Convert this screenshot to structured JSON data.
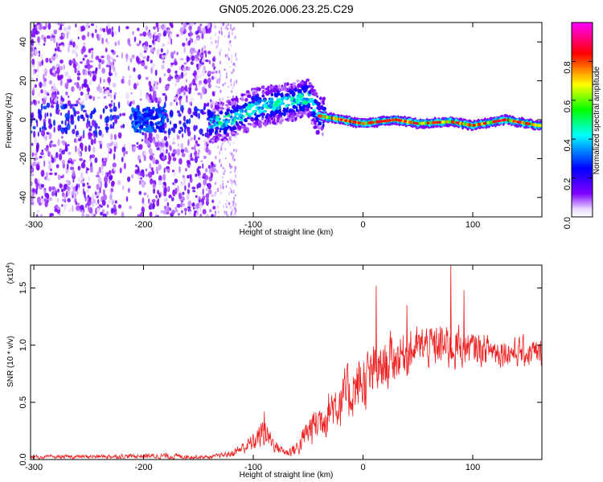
{
  "figure": {
    "title": "GN05.2026.006.23.25.C29"
  },
  "chart_data": [
    {
      "type": "heatmap",
      "xlabel": "Height of straight line (km)",
      "ylabel": "Frequency (Hz)",
      "xlim": [
        -303,
        163
      ],
      "ylim": [
        -50,
        50
      ],
      "x_ticks": [
        -300,
        -200,
        -100,
        0,
        100
      ],
      "x_tick_labels": [
        "-300",
        "-200",
        "-100",
        "0",
        "100"
      ],
      "y_ticks": [
        -40,
        -20,
        0,
        20,
        40
      ],
      "y_tick_labels": [
        "-40",
        "-20",
        "0",
        "20",
        "40"
      ],
      "colorbar": {
        "label": "Normalized spectral amplitude",
        "range": [
          0,
          1
        ],
        "ticks": [
          0.0,
          0.2,
          0.4,
          0.6,
          0.8
        ],
        "tick_labels": [
          "0.0",
          "0.2",
          "0.4",
          "0.6",
          "0.8"
        ],
        "colormap": [
          "#ffffff",
          "#8000ff",
          "#0000ff",
          "#00ffff",
          "#00ff00",
          "#ffff00",
          "#ff0000",
          "#ff00ff"
        ]
      },
      "ridge": [
        {
          "x": -200,
          "freq": 0
        },
        {
          "x": -140,
          "freq": -2
        },
        {
          "x": -120,
          "freq": 0
        },
        {
          "x": -100,
          "freq": 6
        },
        {
          "x": -80,
          "freq": 8
        },
        {
          "x": -60,
          "freq": 10
        },
        {
          "x": -50,
          "freq": 12
        },
        {
          "x": -40,
          "freq": 2
        },
        {
          "x": 0,
          "freq": -2
        },
        {
          "x": 30,
          "freq": 0
        },
        {
          "x": 50,
          "freq": -2
        },
        {
          "x": 80,
          "freq": -1
        },
        {
          "x": 100,
          "freq": -3
        },
        {
          "x": 130,
          "freq": 0
        },
        {
          "x": 160,
          "freq": -3
        }
      ],
      "grid": false
    },
    {
      "type": "line",
      "xlabel": "Height of straight line (km)",
      "ylabel": "SNR (10 * v/v)",
      "y_multiplier": "(x10",
      "y_multiplier_exp": "4",
      "y_multiplier_close": ")",
      "xlim": [
        -303,
        163
      ],
      "ylim": [
        0,
        1.7
      ],
      "x_ticks": [
        -300,
        -200,
        -100,
        0,
        100
      ],
      "x_tick_labels": [
        "-300",
        "-200",
        "-100",
        "0",
        "100"
      ],
      "y_ticks": [
        0.0,
        0.5,
        1.0,
        1.5
      ],
      "y_tick_labels": [
        "0.0",
        "0.5",
        "1.0",
        "1.5"
      ],
      "color": "#ee2020",
      "grid": false,
      "envelope": [
        {
          "x": -303,
          "base": 0.02,
          "noise": 0.02
        },
        {
          "x": -200,
          "base": 0.03,
          "noise": 0.03
        },
        {
          "x": -180,
          "base": 0.03,
          "noise": 0.04
        },
        {
          "x": -140,
          "base": 0.02,
          "noise": 0.02
        },
        {
          "x": -120,
          "base": 0.05,
          "noise": 0.04
        },
        {
          "x": -100,
          "base": 0.15,
          "noise": 0.12
        },
        {
          "x": -90,
          "base": 0.25,
          "noise": 0.18
        },
        {
          "x": -80,
          "base": 0.12,
          "noise": 0.08
        },
        {
          "x": -70,
          "base": 0.06,
          "noise": 0.05
        },
        {
          "x": -60,
          "base": 0.1,
          "noise": 0.1
        },
        {
          "x": -50,
          "base": 0.25,
          "noise": 0.2
        },
        {
          "x": -30,
          "base": 0.45,
          "noise": 0.3
        },
        {
          "x": -10,
          "base": 0.6,
          "noise": 0.35
        },
        {
          "x": 10,
          "base": 0.75,
          "noise": 0.35
        },
        {
          "x": 30,
          "base": 0.9,
          "noise": 0.3
        },
        {
          "x": 50,
          "base": 0.98,
          "noise": 0.25
        },
        {
          "x": 80,
          "base": 1.0,
          "noise": 0.3
        },
        {
          "x": 100,
          "base": 0.97,
          "noise": 0.2
        },
        {
          "x": 130,
          "base": 0.95,
          "noise": 0.18
        },
        {
          "x": 163,
          "base": 0.92,
          "noise": 0.18
        }
      ],
      "spikes": [
        {
          "x": 12,
          "y": 1.52
        },
        {
          "x": 80,
          "y": 1.72
        },
        {
          "x": 92,
          "y": 1.48
        },
        {
          "x": -90,
          "y": 0.42
        },
        {
          "x": 40,
          "y": 1.35
        }
      ]
    }
  ]
}
